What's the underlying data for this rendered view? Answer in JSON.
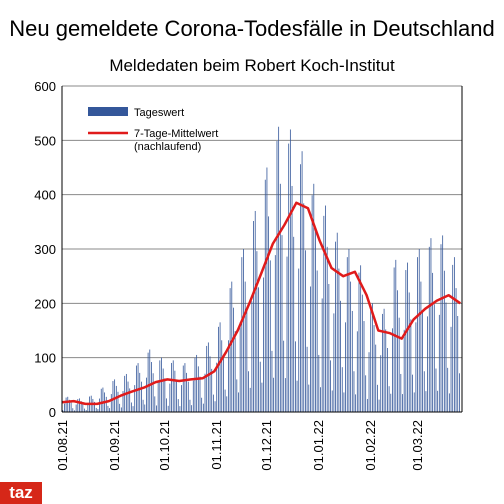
{
  "logo_text": "taz",
  "colors": {
    "bars": "#34579a",
    "line": "#e01b1b",
    "grid": "#8a8a8a"
  },
  "chart_data": {
    "type": "bar",
    "title": "Neu gemeldete Corona-Todesfälle in Deutschland",
    "subtitle": "Meldedaten beim Robert Koch-Institut",
    "ylim": [
      0,
      600
    ],
    "yticks": [
      0,
      100,
      200,
      300,
      400,
      500,
      600
    ],
    "grid": true,
    "legend_position": "top-left",
    "x_tick_labels": [
      "01.08.21",
      "01.09.21",
      "01.10.21",
      "01.11.21",
      "01.12.21",
      "01.01.22",
      "01.02.22",
      "01.03.22"
    ],
    "x_start": "2021-08-01",
    "series": [
      {
        "name": "Tageswert",
        "kind": "bar",
        "daily_peaks_by_week": [
          {
            "week_start": "2021-08-01",
            "max": 28
          },
          {
            "week_start": "2021-08-08",
            "max": 25
          },
          {
            "week_start": "2021-08-15",
            "max": 30
          },
          {
            "week_start": "2021-08-22",
            "max": 45
          },
          {
            "week_start": "2021-08-29",
            "max": 60
          },
          {
            "week_start": "2021-09-05",
            "max": 70
          },
          {
            "week_start": "2021-09-12",
            "max": 90
          },
          {
            "week_start": "2021-09-19",
            "max": 115
          },
          {
            "week_start": "2021-09-26",
            "max": 100
          },
          {
            "week_start": "2021-10-03",
            "max": 95
          },
          {
            "week_start": "2021-10-10",
            "max": 90
          },
          {
            "week_start": "2021-10-17",
            "max": 105
          },
          {
            "week_start": "2021-10-24",
            "max": 128
          },
          {
            "week_start": "2021-10-31",
            "max": 165
          },
          {
            "week_start": "2021-11-07",
            "max": 240
          },
          {
            "week_start": "2021-11-14",
            "max": 300
          },
          {
            "week_start": "2021-11-21",
            "max": 370
          },
          {
            "week_start": "2021-11-28",
            "max": 450
          },
          {
            "week_start": "2021-12-05",
            "max": 525
          },
          {
            "week_start": "2021-12-12",
            "max": 520
          },
          {
            "week_start": "2021-12-19",
            "max": 480
          },
          {
            "week_start": "2021-12-26",
            "max": 420
          },
          {
            "week_start": "2022-01-02",
            "max": 380
          },
          {
            "week_start": "2022-01-09",
            "max": 330
          },
          {
            "week_start": "2022-01-16",
            "max": 300
          },
          {
            "week_start": "2022-01-23",
            "max": 270
          },
          {
            "week_start": "2022-01-30",
            "max": 200
          },
          {
            "week_start": "2022-02-06",
            "max": 190
          },
          {
            "week_start": "2022-02-13",
            "max": 280
          },
          {
            "week_start": "2022-02-20",
            "max": 275
          },
          {
            "week_start": "2022-02-27",
            "max": 300
          },
          {
            "week_start": "2022-03-06",
            "max": 320
          },
          {
            "week_start": "2022-03-13",
            "max": 325
          },
          {
            "week_start": "2022-03-20",
            "max": 285
          }
        ]
      },
      {
        "name": "7-Tage-Mittelwert\n(nachlaufend)",
        "kind": "line",
        "points": [
          {
            "date": "2021-08-01",
            "value": 18
          },
          {
            "date": "2021-08-08",
            "value": 20
          },
          {
            "date": "2021-08-15",
            "value": 15
          },
          {
            "date": "2021-08-22",
            "value": 15
          },
          {
            "date": "2021-08-29",
            "value": 20
          },
          {
            "date": "2021-09-05",
            "value": 30
          },
          {
            "date": "2021-09-12",
            "value": 38
          },
          {
            "date": "2021-09-19",
            "value": 45
          },
          {
            "date": "2021-09-26",
            "value": 55
          },
          {
            "date": "2021-10-03",
            "value": 60
          },
          {
            "date": "2021-10-10",
            "value": 57
          },
          {
            "date": "2021-10-17",
            "value": 60
          },
          {
            "date": "2021-10-24",
            "value": 62
          },
          {
            "date": "2021-10-31",
            "value": 75
          },
          {
            "date": "2021-11-07",
            "value": 110
          },
          {
            "date": "2021-11-14",
            "value": 150
          },
          {
            "date": "2021-11-21",
            "value": 200
          },
          {
            "date": "2021-11-28",
            "value": 255
          },
          {
            "date": "2021-12-05",
            "value": 310
          },
          {
            "date": "2021-12-12",
            "value": 345
          },
          {
            "date": "2021-12-19",
            "value": 385
          },
          {
            "date": "2021-12-26",
            "value": 375
          },
          {
            "date": "2022-01-02",
            "value": 315
          },
          {
            "date": "2022-01-09",
            "value": 265
          },
          {
            "date": "2022-01-16",
            "value": 250
          },
          {
            "date": "2022-01-23",
            "value": 258
          },
          {
            "date": "2022-01-30",
            "value": 215
          },
          {
            "date": "2022-02-06",
            "value": 150
          },
          {
            "date": "2022-02-13",
            "value": 145
          },
          {
            "date": "2022-02-20",
            "value": 135
          },
          {
            "date": "2022-02-27",
            "value": 170
          },
          {
            "date": "2022-03-06",
            "value": 190
          },
          {
            "date": "2022-03-13",
            "value": 205
          },
          {
            "date": "2022-03-20",
            "value": 215
          },
          {
            "date": "2022-03-27",
            "value": 200
          }
        ]
      }
    ]
  }
}
